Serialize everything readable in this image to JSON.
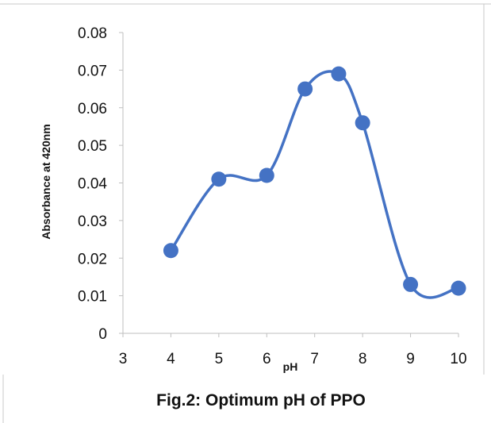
{
  "chart_data": {
    "type": "line",
    "title": "",
    "caption": "Fig.2: Optimum pH of PPO",
    "xlabel": "pH",
    "ylabel": "Absorbance at 420nm",
    "xlim": [
      3,
      10
    ],
    "ylim": [
      0,
      0.08
    ],
    "x_ticks": [
      "3",
      "4",
      "5",
      "6",
      "7",
      "8",
      "9",
      "10"
    ],
    "y_ticks": [
      "0",
      "0.01",
      "0.02",
      "0.03",
      "0.04",
      "0.05",
      "0.06",
      "0.07",
      "0.08"
    ],
    "grid": false,
    "smooth": true,
    "color": "#4472C4",
    "series": [
      {
        "x": [
          4,
          5,
          6,
          6.8,
          7.5,
          8,
          9,
          10
        ],
        "y": [
          0.022,
          0.041,
          0.042,
          0.065,
          0.069,
          0.056,
          0.013,
          0.012
        ]
      }
    ]
  }
}
